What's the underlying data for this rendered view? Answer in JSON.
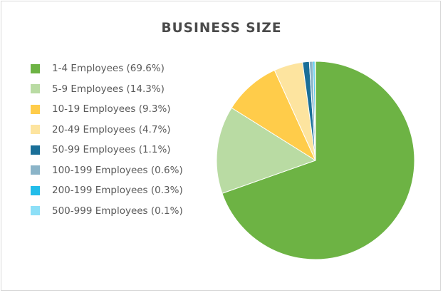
{
  "chart_data": {
    "type": "pie",
    "title": "BUSINESS SIZE",
    "legend_position": "left",
    "slices": [
      {
        "label": "1-4 Employees (69.6%)",
        "value": 69.6,
        "color": "#6db344"
      },
      {
        "label": "5-9 Employees (14.3%)",
        "value": 14.3,
        "color": "#b9dba3"
      },
      {
        "label": "10-19 Employees (9.3%)",
        "value": 9.3,
        "color": "#ffcc4a"
      },
      {
        "label": "20-49 Employees (4.7%)",
        "value": 4.7,
        "color": "#fde49f"
      },
      {
        "label": "50-99 Employees (1.1%)",
        "value": 1.1,
        "color": "#1a6f98"
      },
      {
        "label": "100-199 Employees (0.6%)",
        "value": 0.6,
        "color": "#8bb4c8"
      },
      {
        "label": "200-199 Employees (0.3%)",
        "value": 0.3,
        "color": "#22bdea"
      },
      {
        "label": "500-999 Employees (0.1%)",
        "value": 0.1,
        "color": "#8ddff7"
      }
    ]
  }
}
